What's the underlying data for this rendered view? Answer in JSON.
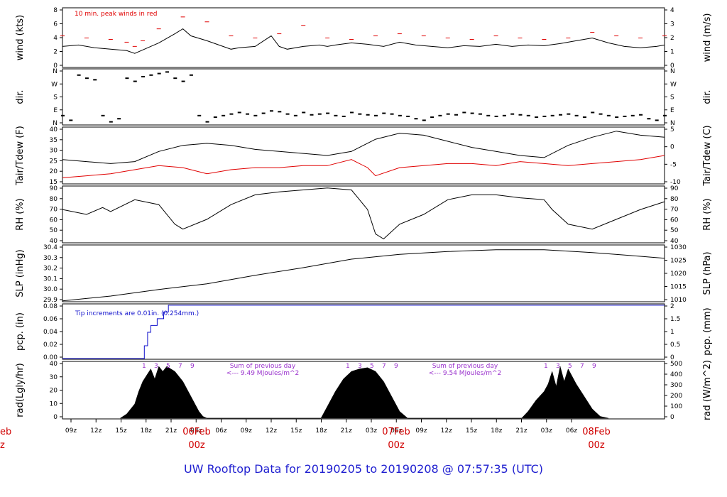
{
  "colors": {
    "black": "#000000",
    "red": "#e00000",
    "blue": "#1010cc",
    "purple": "#9a32cd",
    "daylabel": "#d00000",
    "title": "#1f1fd0"
  },
  "title": "UW Rooftop Data for 20190205  to  20190208 @ 07:57:35  (UTC)",
  "x_axis": {
    "hour_ticks": [
      "09z",
      "12z",
      "15z",
      "18z",
      "21z",
      "03z",
      "06z",
      "09z",
      "12z",
      "15z",
      "18z",
      "21z",
      "03z",
      "06z",
      "09z",
      "12z",
      "15z",
      "18z",
      "21z",
      "03z",
      "06z"
    ],
    "day_labels": [
      {
        "date": "06Feb",
        "hour": "00z"
      },
      {
        "date": "07Feb",
        "hour": "00z"
      },
      {
        "date": "08Feb",
        "hour": "00z"
      }
    ],
    "cut_label": {
      "date": "eb",
      "hour": "z"
    }
  },
  "chart_data": [
    {
      "id": "wind",
      "type": "line",
      "ylabel_left": "wind (kts)",
      "ylabel_right": "wind (m/s)",
      "yticks_left": [
        "0",
        "2",
        "4",
        "6",
        "8"
      ],
      "yticks_right": [
        "0",
        "1",
        "2",
        "3",
        "4"
      ],
      "ylim": [
        0,
        8.5
      ],
      "annotation": "10 min. peak winds in red",
      "series": [
        {
          "color": "red",
          "style": "dashes",
          "x": [
            0,
            3,
            6,
            8,
            9,
            10,
            12,
            15,
            18,
            21,
            24,
            27,
            30,
            33,
            36,
            39,
            42,
            45,
            48,
            51,
            54,
            57,
            60,
            63,
            66,
            69,
            72,
            75
          ],
          "values": [
            4.5,
            4.2,
            4.0,
            3.6,
            3.0,
            3.8,
            5.5,
            7.2,
            6.5,
            4.5,
            4.2,
            4.8,
            6.0,
            4.2,
            4.0,
            4.5,
            4.8,
            4.5,
            4.2,
            4.0,
            4.5,
            4.2,
            4.0,
            4.2,
            5.0,
            4.5,
            4.2,
            4.5
          ]
        },
        {
          "color": "black",
          "style": "line",
          "x": [
            0,
            2,
            4,
            6,
            8,
            9,
            10,
            12,
            14,
            15,
            16,
            18,
            20,
            21,
            22,
            24,
            26,
            27,
            28,
            30,
            32,
            33,
            34,
            36,
            38,
            40,
            42,
            44,
            46,
            48,
            50,
            52,
            54,
            56,
            58,
            60,
            62,
            64,
            66,
            68,
            70,
            72,
            74,
            75
          ],
          "values": [
            3.0,
            3.2,
            2.8,
            2.6,
            2.4,
            2.0,
            2.5,
            3.5,
            4.8,
            5.5,
            4.5,
            3.8,
            3.0,
            2.6,
            2.8,
            3.0,
            4.5,
            3.0,
            2.6,
            3.0,
            3.2,
            3.0,
            3.2,
            3.5,
            3.3,
            3.0,
            3.6,
            3.2,
            3.0,
            2.8,
            3.1,
            3.0,
            3.3,
            3.0,
            3.2,
            3.1,
            3.4,
            3.8,
            4.2,
            3.5,
            3.0,
            2.8,
            3.0,
            3.2
          ]
        }
      ]
    },
    {
      "id": "dir",
      "type": "scatter",
      "ylabel_left": "dir.",
      "ylabel_right": "dir.",
      "yticks_left": [
        "N",
        "E",
        "S",
        "W",
        "N"
      ],
      "yticks_right": [
        "N",
        "E",
        "S",
        "W",
        "N"
      ],
      "ylim": [
        0,
        360
      ],
      "series": [
        {
          "color": "black",
          "x": [
            0,
            1,
            2,
            3,
            4,
            5,
            6,
            7,
            8,
            9,
            10,
            11,
            12,
            13,
            14,
            15,
            16,
            17,
            18,
            19,
            20,
            21,
            22,
            23,
            24,
            25,
            26,
            27,
            28,
            29,
            30,
            31,
            32,
            33,
            34,
            35,
            36,
            37,
            38,
            39,
            40,
            41,
            42,
            43,
            44,
            45,
            46,
            47,
            48,
            49,
            50,
            51,
            52,
            53,
            54,
            55,
            56,
            57,
            58,
            59,
            60,
            61,
            62,
            63,
            64,
            65,
            66,
            67,
            68,
            69,
            70,
            71,
            72,
            73,
            74,
            75
          ],
          "values": [
            60,
            30,
            320,
            300,
            290,
            60,
            20,
            40,
            300,
            280,
            310,
            320,
            330,
            340,
            300,
            280,
            320,
            60,
            20,
            50,
            60,
            70,
            80,
            70,
            60,
            75,
            90,
            85,
            70,
            60,
            80,
            65,
            70,
            75,
            60,
            55,
            80,
            70,
            65,
            60,
            75,
            70,
            60,
            55,
            40,
            30,
            50,
            60,
            70,
            65,
            80,
            75,
            70,
            60,
            55,
            60,
            70,
            65,
            60,
            50,
            55,
            60,
            65,
            70,
            60,
            50,
            80,
            70,
            60,
            50,
            55,
            60,
            65,
            40,
            30,
            60
          ]
        }
      ]
    },
    {
      "id": "temp",
      "type": "line",
      "ylabel_left": "Tair/Tdew (F)",
      "ylabel_right": "Tair/Tdew (C)",
      "yticks_left": [
        "15",
        "20",
        "25",
        "30",
        "35",
        "40"
      ],
      "yticks_right": [
        "-10",
        "-5",
        "0",
        "5"
      ],
      "ylim": [
        14,
        42
      ],
      "series": [
        {
          "color": "black",
          "x": [
            0,
            3,
            6,
            9,
            12,
            15,
            18,
            21,
            24,
            27,
            30,
            33,
            36,
            39,
            42,
            45,
            48,
            51,
            54,
            57,
            60,
            63,
            66,
            69,
            72,
            75
          ],
          "values": [
            26,
            25,
            24,
            25,
            30,
            33,
            34,
            33,
            31,
            30,
            29,
            28,
            30,
            36,
            39,
            38,
            35,
            32,
            30,
            28,
            27,
            33,
            37,
            40,
            38,
            37
          ]
        },
        {
          "color": "red",
          "x": [
            0,
            3,
            6,
            9,
            12,
            15,
            18,
            21,
            24,
            27,
            30,
            33,
            36,
            37,
            38,
            39,
            42,
            45,
            48,
            51,
            54,
            57,
            60,
            63,
            66,
            69,
            72,
            75
          ],
          "values": [
            17,
            18,
            19,
            21,
            23,
            22,
            19,
            21,
            22,
            22,
            23,
            23,
            26,
            24,
            22,
            18,
            22,
            23,
            24,
            24,
            23,
            25,
            24,
            23,
            24,
            25,
            26,
            28
          ]
        }
      ]
    },
    {
      "id": "rh",
      "type": "line",
      "ylabel_left": "RH (%)",
      "ylabel_right": "RH (%)",
      "yticks_left": [
        "40",
        "50",
        "60",
        "70",
        "80",
        "90"
      ],
      "yticks_right": [
        "40",
        "50",
        "60",
        "70",
        "80",
        "90"
      ],
      "ylim": [
        36,
        94
      ],
      "series": [
        {
          "color": "black",
          "x": [
            0,
            3,
            5,
            6,
            9,
            12,
            14,
            15,
            18,
            21,
            24,
            27,
            30,
            33,
            36,
            38,
            39,
            40,
            42,
            45,
            48,
            51,
            54,
            57,
            60,
            61,
            63,
            66,
            69,
            72,
            75
          ],
          "values": [
            70,
            65,
            72,
            68,
            80,
            75,
            55,
            50,
            60,
            75,
            85,
            88,
            90,
            92,
            90,
            70,
            45,
            40,
            55,
            65,
            80,
            85,
            85,
            82,
            80,
            70,
            55,
            50,
            60,
            70,
            78
          ]
        }
      ]
    },
    {
      "id": "slp",
      "type": "line",
      "ylabel_left": "SLP (inHg)",
      "ylabel_right": "SLP (hPa)",
      "yticks_left": [
        "29.9",
        "30.0",
        "30.1",
        "30.2",
        "30.3",
        "30.4"
      ],
      "yticks_right": [
        "1010",
        "1015",
        "1020",
        "1025",
        "1030"
      ],
      "ylim": [
        29.86,
        30.46
      ],
      "series": [
        {
          "color": "black",
          "x": [
            0,
            6,
            12,
            18,
            24,
            30,
            36,
            42,
            48,
            54,
            60,
            66,
            72,
            75
          ],
          "values": [
            29.87,
            29.92,
            29.99,
            30.05,
            30.14,
            30.22,
            30.31,
            30.36,
            30.39,
            30.41,
            30.41,
            30.38,
            30.34,
            30.32
          ]
        }
      ]
    },
    {
      "id": "pcp",
      "type": "line",
      "ylabel_left": "pcp. (in)",
      "ylabel_right": "pcp. (mm)",
      "yticks_left": [
        "0.00",
        "0.02",
        "0.04",
        "0.06",
        "0.08"
      ],
      "yticks_right": [
        "0",
        "0.5",
        "1",
        "1.5",
        "2"
      ],
      "ylim": [
        0,
        0.082
      ],
      "annotation": "Tip increments are 0.01in. (0.254mm.)",
      "series": [
        {
          "color": "blue",
          "style": "step",
          "x": [
            0,
            10,
            10.2,
            10.6,
            11.0,
            11.8,
            12.6,
            13.2,
            75
          ],
          "values": [
            0,
            0,
            0.02,
            0.04,
            0.05,
            0.06,
            0.07,
            0.08,
            0.08
          ]
        }
      ]
    },
    {
      "id": "rad",
      "type": "area",
      "ylabel_left": "rad(Lgly/hr)",
      "ylabel_right": "rad (W/m^2)",
      "yticks_left": [
        "0",
        "10",
        "20",
        "30",
        "40"
      ],
      "yticks_right": [
        "0",
        "100",
        "200",
        "300",
        "400",
        "500"
      ],
      "ylim": [
        0,
        46
      ],
      "series": [
        {
          "color": "black",
          "x": [
            7.2,
            8.0,
            9.0,
            9.5,
            10.0,
            10.5,
            11.0,
            11.5,
            12.0,
            12.5,
            13.0,
            13.5,
            14.0,
            15.0,
            16.0,
            17.0,
            17.5,
            18.0,
            32.2,
            33.0,
            34.0,
            35.0,
            36.0,
            37.0,
            38.0,
            39.0,
            40.0,
            41.0,
            42.0,
            43.0,
            57.2,
            58.0,
            59.0,
            60.0,
            60.5,
            61.0,
            61.5,
            62.0,
            62.5,
            63.0,
            64.0,
            65.0,
            66.0,
            67.0,
            68.0
          ],
          "values": [
            0,
            4,
            12,
            22,
            30,
            35,
            40,
            32,
            42,
            38,
            42,
            40,
            38,
            30,
            18,
            6,
            2,
            0,
            0,
            10,
            22,
            32,
            38,
            40,
            41,
            38,
            30,
            18,
            6,
            0,
            0,
            6,
            15,
            22,
            28,
            38,
            26,
            42,
            30,
            40,
            28,
            18,
            8,
            2,
            0
          ]
        }
      ],
      "markers": [
        "1",
        "3",
        "5",
        "7",
        "9"
      ],
      "sum_label": "Sum of previous day",
      "sums": [
        "<--- 9.49 MJoules/m^2",
        "<--- 9.54 MJoules/m^2"
      ]
    }
  ]
}
